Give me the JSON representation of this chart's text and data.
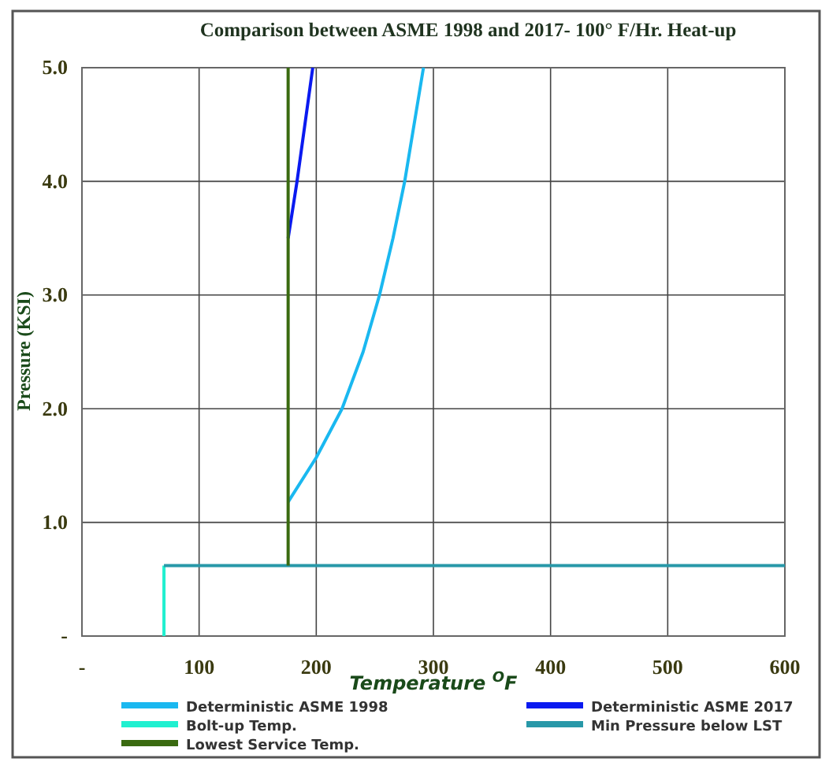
{
  "chart_data": {
    "type": "line",
    "title": "Comparison between ASME 1998 and  2017- 100° F/Hr. Heat-up",
    "xlabel": "Temperature $^{O}$F",
    "ylabel": "Pressure (KSI)",
    "xlim": [
      0,
      600
    ],
    "xticks": [
      {
        "value": 0,
        "label": "-"
      },
      100,
      200,
      300,
      400,
      500,
      600
    ],
    "ylim": [
      0,
      5
    ],
    "yticks": [
      {
        "value": 0,
        "label": "-"
      },
      {
        "value": 1,
        "label": "1.0"
      },
      {
        "value": 2,
        "label": "2.0"
      },
      {
        "value": 3,
        "label": "3.0"
      },
      {
        "value": 4,
        "label": "4.0"
      },
      {
        "value": 5,
        "label": "5.0"
      }
    ],
    "grid": true,
    "legend": "bottom",
    "marker": "none",
    "line_style": "solid",
    "series": [
      {
        "name": "Deterministic ASME 1998",
        "color": "#1ab8f0",
        "x": [
          176,
          200,
          222,
          240,
          254,
          265.5,
          275.5,
          291.5
        ],
        "values": [
          1.18,
          1.57,
          2.0,
          2.5,
          3.0,
          3.5,
          4.0,
          5.0
        ]
      },
      {
        "name": "Deterministic ASME 2017",
        "color": "#0a1af0",
        "x": [
          176,
          183.6,
          197
        ],
        "values": [
          3.5,
          4.0,
          5.0
        ]
      },
      {
        "name": "Bolt-up Temp.",
        "color": "#20f0d0",
        "x": [
          70,
          70
        ],
        "values": [
          0,
          0.62
        ]
      },
      {
        "name": "Min Pressure below LST",
        "color": "#2898a8",
        "x": [
          70,
          600
        ],
        "values": [
          0.62,
          0.62
        ]
      },
      {
        "name": "Lowest Service Temp.",
        "color": "#3a6a10",
        "x": [
          176,
          176
        ],
        "values": [
          0.62,
          5.0
        ]
      }
    ]
  }
}
